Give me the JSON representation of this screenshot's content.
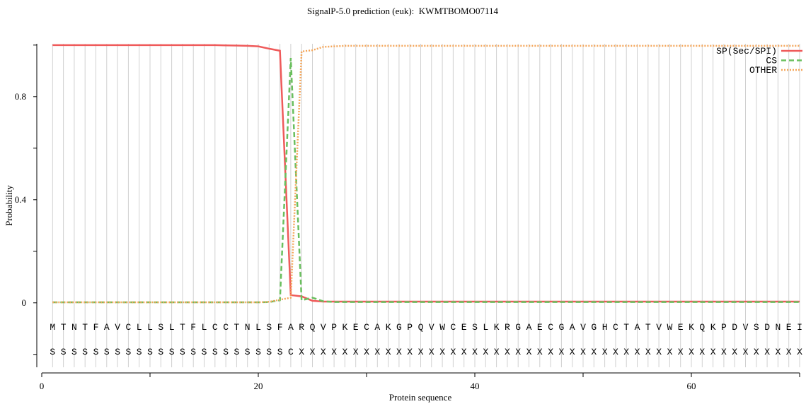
{
  "chart_data": {
    "type": "line",
    "title": "SignalP-5.0 prediction (euk):  KWMTBOMO07114",
    "xlabel": "Protein sequence",
    "ylabel": "Probability",
    "xlim": [
      0,
      70
    ],
    "xticks": [
      0,
      20,
      40,
      60
    ],
    "xminorticks": [
      10,
      30,
      50,
      70
    ],
    "ylim": [
      -0.25,
      1.005
    ],
    "yticks": [
      0,
      0.4,
      0.8
    ],
    "yminorticks": [
      -0.2,
      0.2,
      0.6,
      1.0
    ],
    "grid": true,
    "legend": "upper right",
    "x": [
      1,
      2,
      3,
      4,
      5,
      6,
      7,
      8,
      9,
      10,
      11,
      12,
      13,
      14,
      15,
      16,
      17,
      18,
      19,
      20,
      21,
      22,
      23,
      24,
      25,
      26,
      27,
      28,
      29,
      30,
      31,
      32,
      33,
      34,
      35,
      36,
      37,
      38,
      39,
      40,
      41,
      42,
      43,
      44,
      45,
      46,
      47,
      48,
      49,
      50,
      51,
      52,
      53,
      54,
      55,
      56,
      57,
      58,
      59,
      60,
      61,
      62,
      63,
      64,
      65,
      66,
      67,
      68,
      69,
      70
    ],
    "sequence": [
      "M",
      "T",
      "N",
      "T",
      "F",
      "A",
      "V",
      "C",
      "L",
      "L",
      "S",
      "L",
      "T",
      "F",
      "L",
      "C",
      "C",
      "T",
      "N",
      "L",
      "S",
      "F",
      "A",
      "R",
      "Q",
      "V",
      "P",
      "K",
      "E",
      "C",
      "A",
      "K",
      "G",
      "P",
      "Q",
      "V",
      "W",
      "C",
      "E",
      "S",
      "L",
      "K",
      "R",
      "G",
      "A",
      "E",
      "C",
      "G",
      "A",
      "V",
      "G",
      "H",
      "C",
      "T",
      "A",
      "T",
      "V",
      "W",
      "E",
      "K",
      "Q",
      "K",
      "P",
      "D",
      "V",
      "S",
      "D",
      "N",
      "E",
      "I"
    ],
    "annotation": [
      "S",
      "S",
      "S",
      "S",
      "S",
      "S",
      "S",
      "S",
      "S",
      "S",
      "S",
      "S",
      "S",
      "S",
      "S",
      "S",
      "S",
      "S",
      "S",
      "S",
      "S",
      "S",
      "C",
      "X",
      "X",
      "X",
      "X",
      "X",
      "X",
      "X",
      "X",
      "X",
      "X",
      "X",
      "X",
      "X",
      "X",
      "X",
      "X",
      "X",
      "X",
      "X",
      "X",
      "X",
      "X",
      "X",
      "X",
      "X",
      "X",
      "X",
      "X",
      "X",
      "X",
      "X",
      "X",
      "X",
      "X",
      "X",
      "X",
      "X",
      "X",
      "X",
      "X",
      "X",
      "X",
      "X",
      "X",
      "X",
      "X",
      "X"
    ],
    "series": [
      {
        "name": "SP(Sec/SPI)",
        "color": "#ef5a5a",
        "dash": "solid",
        "values": [
          1,
          1,
          1,
          1,
          1,
          1,
          1,
          1,
          1,
          1,
          1,
          1,
          1,
          1,
          1,
          1,
          0.999,
          0.998,
          0.997,
          0.995,
          0.986,
          0.978,
          0.03,
          0.025,
          0.008,
          0.005,
          0.005,
          0.005,
          0.005,
          0.005,
          0.005,
          0.005,
          0.005,
          0.005,
          0.005,
          0.005,
          0.005,
          0.005,
          0.005,
          0.005,
          0.005,
          0.005,
          0.005,
          0.005,
          0.005,
          0.005,
          0.005,
          0.005,
          0.005,
          0.005,
          0.005,
          0.005,
          0.005,
          0.005,
          0.005,
          0.005,
          0.005,
          0.005,
          0.005,
          0.005,
          0.005,
          0.005,
          0.005,
          0.005,
          0.005,
          0.005,
          0.005,
          0.005,
          0.005,
          0.005
        ]
      },
      {
        "name": "CS",
        "color": "#6abf5e",
        "dash": "dashed",
        "values": [
          0.002,
          0.002,
          0.002,
          0.002,
          0.002,
          0.002,
          0.002,
          0.002,
          0.002,
          0.002,
          0.002,
          0.002,
          0.002,
          0.002,
          0.002,
          0.002,
          0.002,
          0.002,
          0.002,
          0.002,
          0.003,
          0.01,
          0.95,
          0.01,
          0.02,
          0.006,
          0.003,
          0.003,
          0.003,
          0.003,
          0.003,
          0.003,
          0.003,
          0.003,
          0.003,
          0.003,
          0.003,
          0.003,
          0.003,
          0.003,
          0.003,
          0.003,
          0.003,
          0.003,
          0.003,
          0.003,
          0.003,
          0.003,
          0.003,
          0.003,
          0.003,
          0.003,
          0.003,
          0.003,
          0.003,
          0.003,
          0.003,
          0.003,
          0.003,
          0.003,
          0.003,
          0.003,
          0.003,
          0.003,
          0.003,
          0.003,
          0.003,
          0.003,
          0.003,
          0.003
        ]
      },
      {
        "name": "OTHER",
        "color": "#f4a65a",
        "dash": "dotted",
        "values": [
          0.002,
          0.002,
          0.002,
          0.002,
          0.002,
          0.002,
          0.002,
          0.002,
          0.002,
          0.002,
          0.002,
          0.002,
          0.002,
          0.002,
          0.002,
          0.002,
          0.002,
          0.002,
          0.002,
          0.002,
          0.004,
          0.012,
          0.02,
          0.975,
          0.98,
          0.993,
          0.995,
          0.997,
          0.997,
          0.997,
          0.997,
          0.997,
          0.997,
          0.997,
          0.997,
          0.997,
          0.997,
          0.997,
          0.997,
          0.997,
          0.997,
          0.997,
          0.997,
          0.997,
          0.997,
          0.997,
          0.997,
          0.997,
          0.997,
          0.997,
          0.997,
          0.997,
          0.997,
          0.997,
          0.997,
          0.997,
          0.997,
          0.997,
          0.997,
          0.997,
          0.997,
          0.997,
          0.997,
          0.997,
          0.997,
          0.997,
          0.997,
          0.997,
          0.997,
          0.997
        ]
      }
    ]
  }
}
